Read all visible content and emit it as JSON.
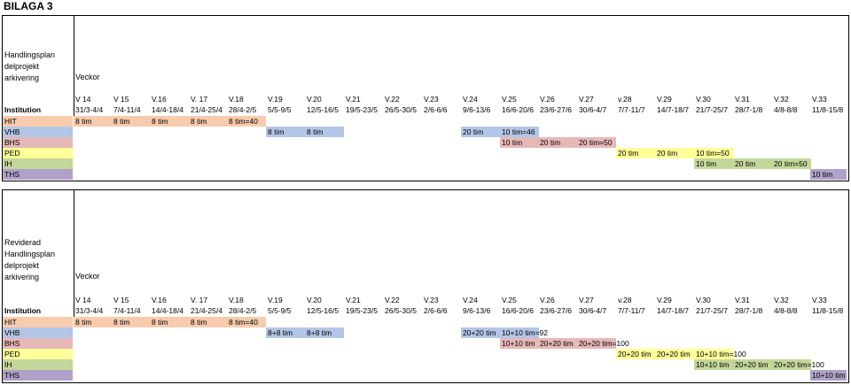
{
  "title": "BILAGA 3",
  "column_header": "Veckor",
  "institution_label": "Institution",
  "weeks": [
    "V 14",
    "V 15",
    "V.16",
    "V. 17",
    "V.18",
    "V.19",
    "V.20",
    "V.21",
    "V.22",
    "V.23",
    "V.24",
    "V.25",
    "V.26",
    "V.27",
    "v.28",
    "V.29",
    "V.30",
    "V.31",
    "V.32",
    "V.33"
  ],
  "weeks2": [
    "V 14",
    "V 15",
    "V.16",
    "V. 17",
    "V.18",
    "V.19",
    "V.20",
    "V.21",
    "V.22",
    "V.23",
    "V.24",
    "V.25",
    "V.26",
    "V.27",
    "v.28",
    "V.29",
    "V.30",
    "V.31",
    "V.32",
    "V.33"
  ],
  "dates": [
    "31/3-4/4",
    "7/4-11/4",
    "14/4-18/4",
    "21/4-25/4",
    "28/4-2/5",
    "5/5-9/5",
    "12/5-16/5",
    "19/5-23/5",
    "26/5-30/5",
    "2/6-6/6",
    "9/6-13/6",
    "16/6-20/6",
    "23/6-27/6",
    "30/6-4/7",
    "7/7-11/7",
    "14/7-18/7",
    "21/7-25/7",
    "28/7-1/8",
    "4/8-8/8",
    "11/8-15/8"
  ],
  "colors": {
    "HIT": "#f8cbad",
    "VHB": "#b4c6e7",
    "BHS": "#e6b8b7",
    "PED": "#ffff99",
    "IH": "#c4d79b",
    "THS": "#b1a0c7"
  },
  "plan1": {
    "label": [
      "Handlingsplan",
      "delprojekt",
      "arkivering"
    ],
    "rows": [
      {
        "name": "HIT",
        "color": "HIT",
        "cells": [
          [
            0,
            "8 tim"
          ],
          [
            1,
            "8 tim"
          ],
          [
            2,
            "8 tim"
          ],
          [
            3,
            "8 tim"
          ],
          [
            4,
            "8 tim=40"
          ]
        ]
      },
      {
        "name": "VHB",
        "color": "VHB",
        "cells": [
          [
            5,
            "8 tim"
          ],
          [
            6,
            "8 tim"
          ],
          [
            10,
            "20 tim"
          ],
          [
            11,
            "10 tim=46"
          ]
        ]
      },
      {
        "name": "BHS",
        "color": "BHS",
        "cells": [
          [
            11,
            "10 tim"
          ],
          [
            12,
            "20 tim"
          ],
          [
            13,
            "20 tim=50"
          ]
        ]
      },
      {
        "name": "PED",
        "color": "PED",
        "cells": [
          [
            14,
            "20 tim"
          ],
          [
            15,
            "20 tim"
          ],
          [
            16,
            "10 tim=50"
          ]
        ]
      },
      {
        "name": "IH",
        "color": "IH",
        "cells": [
          [
            16,
            "10 tim"
          ],
          [
            17,
            "20 tim"
          ],
          [
            18,
            "20 tim=50"
          ]
        ]
      },
      {
        "name": "THS",
        "color": "THS",
        "cells": [
          [
            19,
            "10 tim"
          ]
        ]
      }
    ]
  },
  "plan2": {
    "label": [
      "Reviderad",
      "Handlingsplan",
      "delprojekt",
      "arkivering"
    ],
    "rows": [
      {
        "name": "HIT",
        "color": "HIT",
        "cells": [
          [
            0,
            "8 tim"
          ],
          [
            1,
            "8 tim"
          ],
          [
            2,
            "8 tim"
          ],
          [
            3,
            "8 tim"
          ],
          [
            4,
            "8 tim=40"
          ]
        ]
      },
      {
        "name": "VHB",
        "color": "VHB",
        "cells": [
          [
            5,
            "8+8 tim"
          ],
          [
            6,
            "8+8 tim"
          ],
          [
            10,
            "20+20 tim"
          ],
          [
            11,
            "10+10 tim=92"
          ]
        ]
      },
      {
        "name": "BHS",
        "color": "BHS",
        "cells": [
          [
            11,
            "10+10 tim"
          ],
          [
            12,
            "20+20 tim"
          ],
          [
            13,
            "20+20 tim=100"
          ]
        ]
      },
      {
        "name": "PED",
        "color": "PED",
        "cells": [
          [
            14,
            "20+20 tim"
          ],
          [
            15,
            "20+20 tim"
          ],
          [
            16,
            "10+10 tim=100"
          ]
        ]
      },
      {
        "name": "IH",
        "color": "IH",
        "cells": [
          [
            16,
            "10+10 tim"
          ],
          [
            17,
            "20+20 tim"
          ],
          [
            18,
            "20+20 tim=100"
          ]
        ]
      },
      {
        "name": "THS",
        "color": "THS",
        "cells": [
          [
            19,
            "10+10 tim"
          ]
        ]
      }
    ]
  }
}
